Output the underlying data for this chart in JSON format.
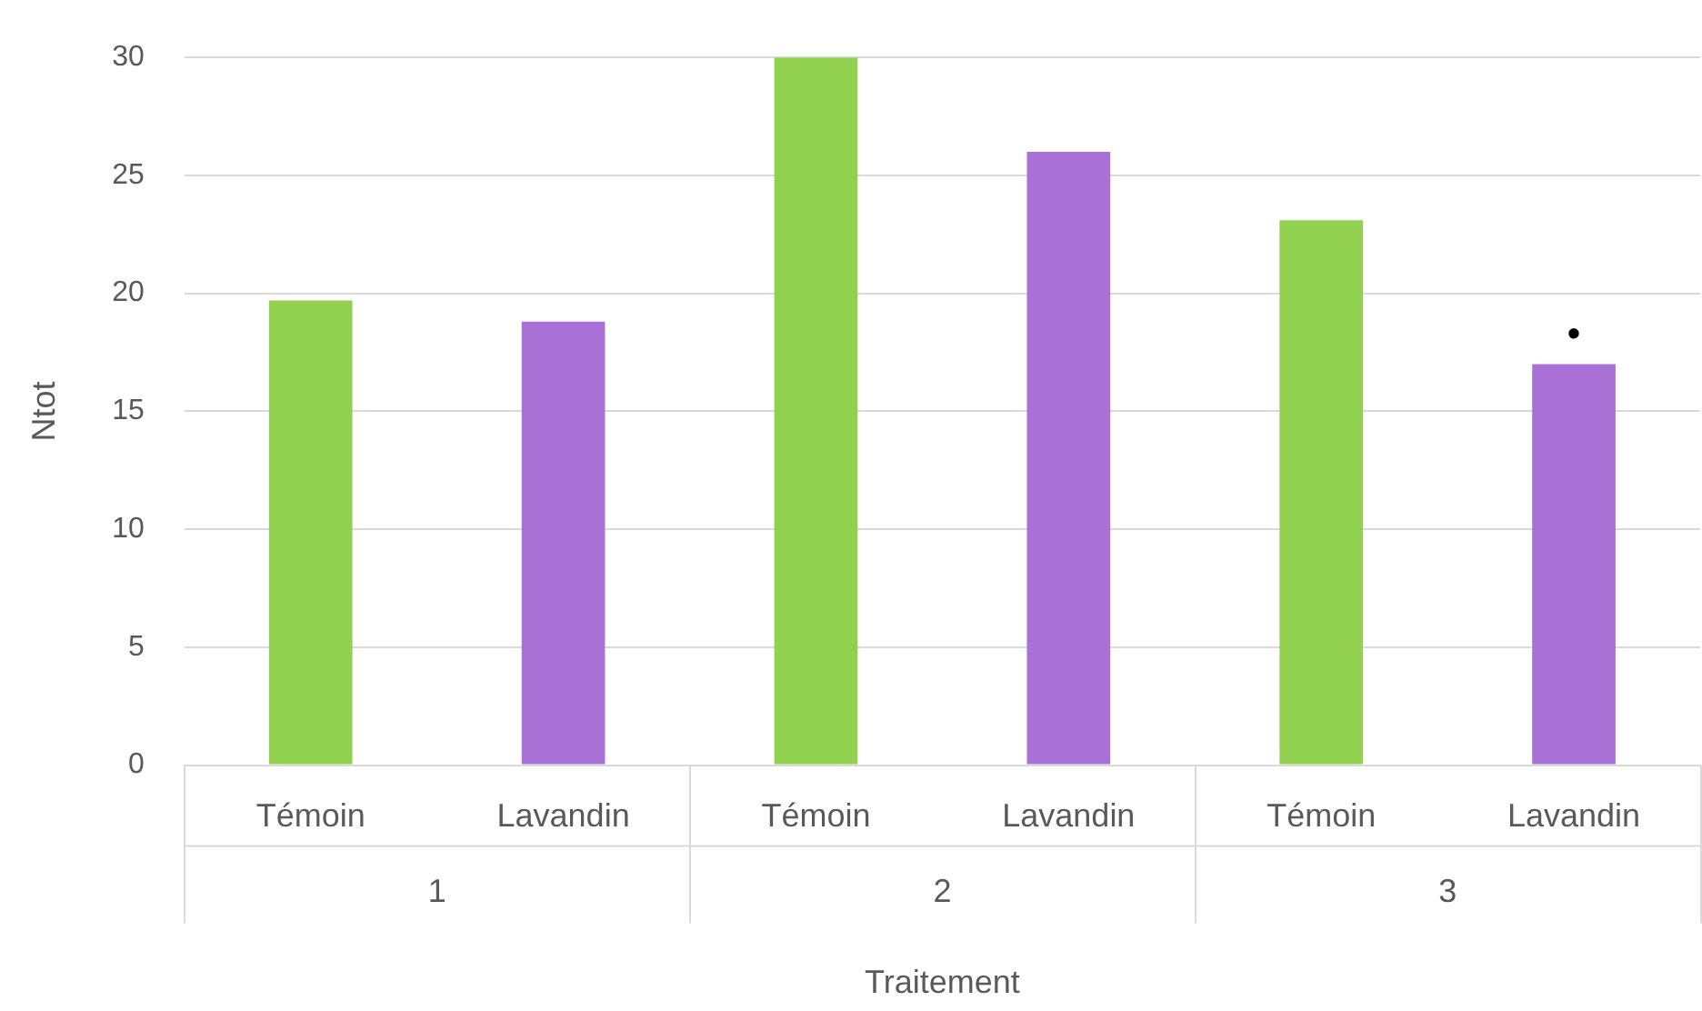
{
  "chart_data": {
    "type": "bar",
    "xlabel": "Traitement",
    "ylabel": "Ntot",
    "categories": [
      "Témoin",
      "Lavandin",
      "Témoin",
      "Lavandin",
      "Témoin",
      "Lavandin"
    ],
    "values": [
      19.7,
      18.8,
      30,
      26.0,
      23.1,
      17.0
    ],
    "colors": [
      "#92d050",
      "#a971d6",
      "#92d050",
      "#a971d6",
      "#92d050",
      "#a971d6"
    ],
    "value_labels": [
      null,
      null,
      null,
      null,
      null,
      "•"
    ],
    "annotations": [
      "1",
      "2",
      "3"
    ],
    "ylim": [
      0,
      30
    ],
    "yticks": [
      0,
      5,
      10,
      15,
      20,
      25,
      30
    ],
    "grid": "y",
    "legend": false
  }
}
